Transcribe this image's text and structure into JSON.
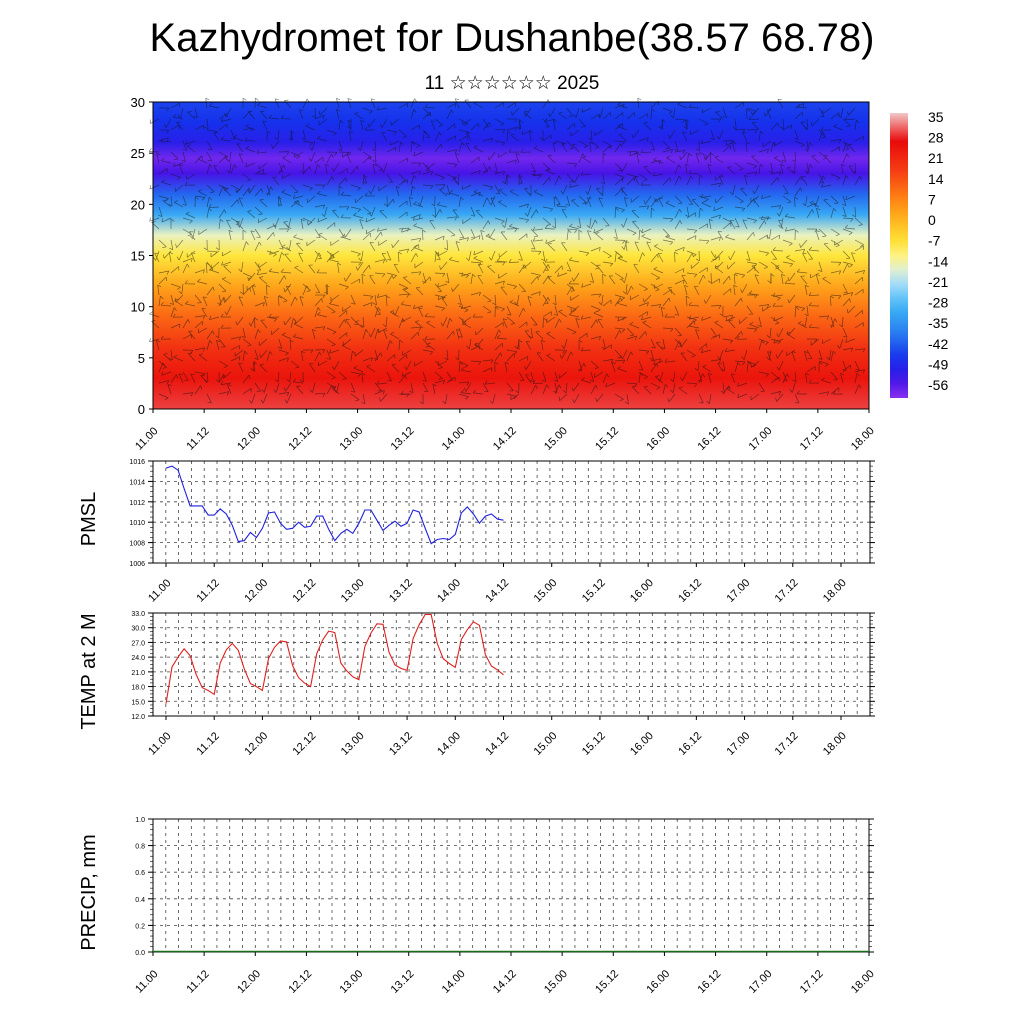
{
  "title": "Kazhydromet for Dushanbe(38.57 68.78)",
  "subtitle": "11 ☆☆☆☆☆☆ 2025",
  "time_ticks": [
    "11.00",
    "11.12",
    "12.00",
    "12.12",
    "13.00",
    "13.12",
    "14.00",
    "14.12",
    "15.00",
    "15.12",
    "16.00",
    "16.12",
    "17.00",
    "17.12",
    "18.00"
  ],
  "colors": {
    "pmsl_line": "#1f1fe0",
    "temp_line": "#e01f1f",
    "precip_base": "#1a6b1a"
  },
  "chart_data": [
    {
      "type": "heatmap",
      "name": "temperature cross-section",
      "ylim": [
        0,
        30
      ],
      "y_ticks": [
        "0",
        "5",
        "10",
        "15",
        "20",
        "25",
        "30"
      ],
      "x_ticks": [
        "11.00",
        "11.12",
        "12.00",
        "12.12",
        "13.00",
        "13.12",
        "14.00",
        "14.12",
        "15.00",
        "15.12",
        "16.00",
        "16.12",
        "17.00",
        "17.12",
        "18.00"
      ],
      "colorbar_labels": [
        "35",
        "28",
        "21",
        "14",
        "7",
        "0",
        "-7",
        "-14",
        "-21",
        "-28",
        "-35",
        "-42",
        "-49",
        "-56"
      ],
      "colorbar_range": [
        -60,
        40
      ],
      "profile": [
        {
          "level": 0,
          "value": 33
        },
        {
          "level": 3,
          "value": 28
        },
        {
          "level": 6,
          "value": 22
        },
        {
          "level": 9,
          "value": 14
        },
        {
          "level": 12,
          "value": 5
        },
        {
          "level": 15,
          "value": -6
        },
        {
          "level": 17,
          "value": -14
        },
        {
          "level": 19,
          "value": -30
        },
        {
          "level": 21,
          "value": -40
        },
        {
          "level": 23,
          "value": -54
        },
        {
          "level": 24.5,
          "value": -58
        },
        {
          "level": 26,
          "value": -50
        },
        {
          "level": 28,
          "value": -46
        },
        {
          "level": 30,
          "value": -44
        }
      ]
    },
    {
      "type": "line",
      "ylabel": "PMSL",
      "ylim": [
        1006,
        1016
      ],
      "y_ticks": [
        "1006",
        "1008",
        "1010",
        "1012",
        "1014",
        "1016"
      ],
      "x_ticks": [
        "11.00",
        "11.12",
        "12.00",
        "12.12",
        "13.00",
        "13.12",
        "14.00",
        "14.12",
        "15.00",
        "15.12",
        "16.00",
        "16.12",
        "17.00",
        "17.12",
        "18.00"
      ],
      "step_hours": 3,
      "values": [
        1015.3,
        1015.5,
        1015.1,
        1013.3,
        1011.6,
        1011.6,
        1011.6,
        1010.7,
        1010.7,
        1011.3,
        1010.8,
        1009.7,
        1008.1,
        1008.2,
        1009.0,
        1008.5,
        1009.4,
        1010.9,
        1011.0,
        1009.9,
        1009.3,
        1009.4,
        1010.0,
        1009.5,
        1009.6,
        1010.6,
        1010.6,
        1009.3,
        1008.2,
        1008.9,
        1009.3,
        1008.9,
        1009.9,
        1011.2,
        1011.2,
        1010.2,
        1009.2,
        1009.7,
        1010.1,
        1009.6,
        1009.9,
        1011.2,
        1011.0,
        1009.4,
        1007.9,
        1008.3,
        1008.4,
        1008.3,
        1008.8,
        1010.9,
        1011.5,
        1010.8,
        1009.9,
        1010.6,
        1010.8,
        1010.3,
        1010.2
      ]
    },
    {
      "type": "line",
      "ylabel": "TEMP at 2 M",
      "ylim": [
        12.0,
        33.0
      ],
      "y_ticks": [
        "12.0",
        "15.0",
        "18.0",
        "21.0",
        "24.0",
        "27.0",
        "30.0",
        "33.0"
      ],
      "x_ticks": [
        "11.00",
        "11.12",
        "12.00",
        "12.12",
        "13.00",
        "13.12",
        "14.00",
        "14.12",
        "15.00",
        "15.12",
        "16.00",
        "16.12",
        "17.00",
        "17.12",
        "18.00"
      ],
      "step_hours": 3,
      "values": [
        14.5,
        22.0,
        24.0,
        25.7,
        24.3,
        20.5,
        17.8,
        17.2,
        16.4,
        22.8,
        25.5,
        26.8,
        25.4,
        21.6,
        18.6,
        18.0,
        17.2,
        23.7,
        26.0,
        27.3,
        27.1,
        22.3,
        19.8,
        18.7,
        18.0,
        24.7,
        27.5,
        29.3,
        29.0,
        22.8,
        21.2,
        20.0,
        19.4,
        26.2,
        28.9,
        30.8,
        30.7,
        25.0,
        22.4,
        21.7,
        21.3,
        27.8,
        30.6,
        32.7,
        32.7,
        26.8,
        23.7,
        22.7,
        21.9,
        27.6,
        29.6,
        31.2,
        30.5,
        24.5,
        22.2,
        21.4,
        20.4
      ]
    },
    {
      "type": "bar",
      "ylabel": "PRECIP, mm",
      "ylim": [
        0.0,
        1.0
      ],
      "y_ticks": [
        "0.0",
        "0.2",
        "0.4",
        "0.6",
        "0.8",
        "1.0"
      ],
      "x_ticks": [
        "11.00",
        "11.12",
        "12.00",
        "12.12",
        "13.00",
        "13.12",
        "14.00",
        "14.12",
        "15.00",
        "15.12",
        "16.00",
        "16.12",
        "17.00",
        "17.12",
        "18.00"
      ],
      "values": [
        0,
        0,
        0,
        0,
        0,
        0,
        0,
        0,
        0,
        0,
        0,
        0,
        0,
        0,
        0
      ]
    }
  ]
}
